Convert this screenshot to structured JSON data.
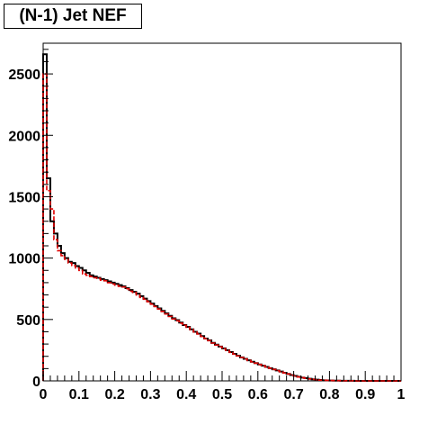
{
  "chart_data": {
    "type": "histogram",
    "title": "(N-1) Jet NEF",
    "xlabel": "",
    "ylabel": "",
    "xlim": [
      0,
      1
    ],
    "ylim": [
      0,
      2750
    ],
    "x_ticks": [
      "0",
      "0.1",
      "0.2",
      "0.3",
      "0.4",
      "0.5",
      "0.6",
      "0.7",
      "0.8",
      "0.9",
      "1"
    ],
    "y_ticks": [
      "0",
      "500",
      "1000",
      "1500",
      "2000",
      "2500"
    ],
    "grid": false,
    "bin_width": 0.01,
    "series": [
      {
        "color": "#000000",
        "style": "solid",
        "values": [
          2660,
          1650,
          1300,
          1200,
          1100,
          1040,
          1000,
          970,
          960,
          935,
          920,
          900,
          880,
          860,
          850,
          840,
          830,
          820,
          810,
          800,
          790,
          780,
          770,
          755,
          740,
          725,
          710,
          690,
          670,
          650,
          630,
          610,
          590,
          570,
          550,
          530,
          510,
          495,
          475,
          455,
          440,
          420,
          400,
          385,
          365,
          345,
          330,
          310,
          295,
          280,
          265,
          250,
          235,
          220,
          205,
          192,
          180,
          168,
          156,
          145,
          134,
          124,
          114,
          104,
          94,
          85,
          76,
          66,
          57,
          48,
          40,
          33,
          27,
          22,
          17,
          13,
          10,
          7,
          5,
          4,
          3,
          2,
          2,
          1,
          1,
          1,
          1,
          0,
          0,
          0,
          0,
          0,
          0,
          0,
          0,
          0,
          0,
          0,
          0,
          0
        ]
      },
      {
        "color": "#e00000",
        "style": "dashed",
        "values": [
          2500,
          1550,
          1400,
          1150,
          1060,
          1020,
          990,
          960,
          940,
          920,
          900,
          870,
          860,
          850,
          840,
          835,
          820,
          815,
          800,
          790,
          780,
          770,
          765,
          750,
          730,
          720,
          700,
          680,
          665,
          645,
          625,
          605,
          585,
          565,
          545,
          525,
          505,
          490,
          470,
          452,
          436,
          418,
          398,
          382,
          362,
          344,
          328,
          308,
          292,
          278,
          262,
          248,
          232,
          218,
          203,
          190,
          178,
          166,
          155,
          144,
          133,
          123,
          113,
          103,
          93,
          84,
          75,
          65,
          56,
          47,
          39,
          32,
          26,
          21,
          16,
          12,
          9,
          6,
          5,
          4,
          3,
          2,
          2,
          1,
          1,
          1,
          1,
          0,
          0,
          0,
          0,
          0,
          0,
          0,
          0,
          0,
          0,
          0,
          0,
          0
        ]
      }
    ]
  }
}
